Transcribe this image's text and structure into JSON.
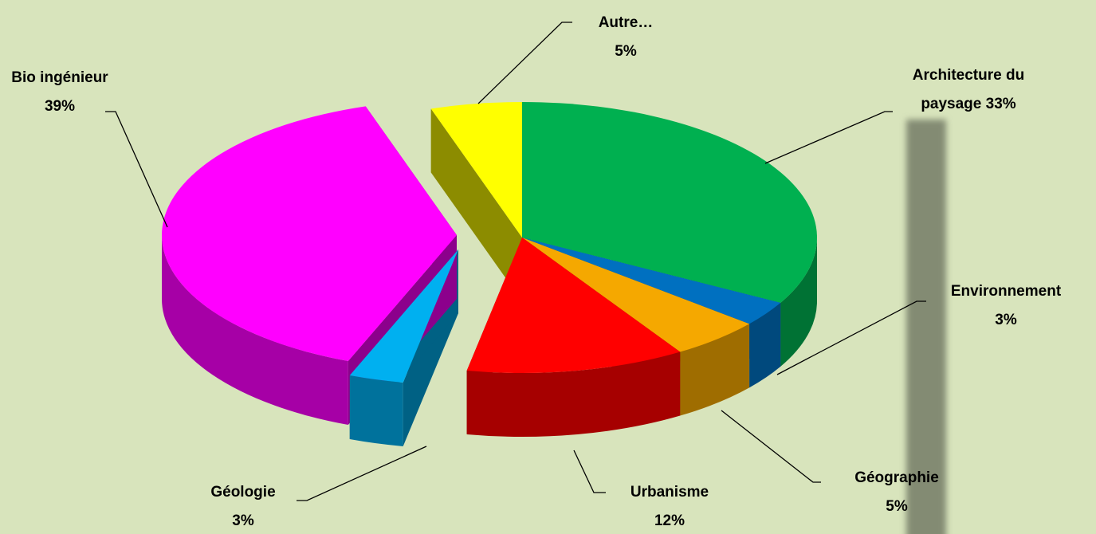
{
  "chart_data": {
    "type": "pie",
    "categories": [
      "Architecture du paysage",
      "Environnement",
      "Géographie",
      "Urbanisme",
      "Géologie",
      "Bio ingénieur",
      "Autre…"
    ],
    "values": [
      33,
      3,
      5,
      12,
      3,
      39,
      5
    ],
    "value_labels": [
      "33%",
      "3%",
      "5%",
      "12%",
      "3%",
      "39%",
      "5%"
    ],
    "colors": [
      "#00b050",
      "#0070c0",
      "#f5a800",
      "#ff0000",
      "#00b0f0",
      "#ff00ff",
      "#ffff00"
    ]
  }
}
